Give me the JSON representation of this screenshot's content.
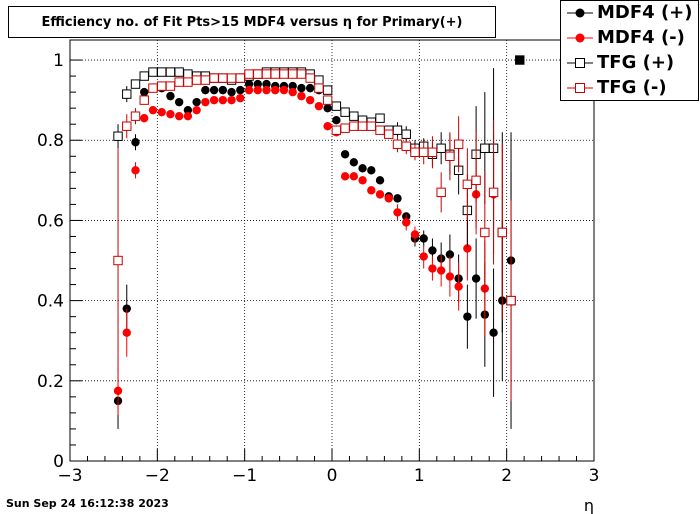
{
  "title": "Efficiency no. of Fit Pts>15 MDF4 versus η for Primary(+)",
  "timestamp": "Sun Sep 24 16:12:38 2023",
  "legend": [
    {
      "label": "MDF4 (+)",
      "color": "#000000",
      "marker": "filled-circle"
    },
    {
      "label": "MDF4 (-)",
      "color": "#ff0000",
      "marker": "filled-circle"
    },
    {
      "label": "TFG (+)",
      "color": "#000000",
      "marker": "open-square"
    },
    {
      "label": "TFG (-)",
      "color": "#cc0000",
      "marker": "open-square"
    }
  ],
  "chart_data": {
    "type": "scatter",
    "title": "Efficiency no. of Fit Pts>15 MDF4 versus η for Primary(+)",
    "xlabel": "η",
    "ylabel": "",
    "xlim": [
      -3,
      3
    ],
    "ylim": [
      0,
      1.05
    ],
    "x_ticks": [
      -3,
      -2,
      -1,
      0,
      1,
      2,
      3
    ],
    "x_tick_labels": [
      "−3",
      "−2",
      "−1",
      "0",
      "1",
      "2",
      "3"
    ],
    "y_ticks": [
      0,
      0.2,
      0.4,
      0.6,
      0.8,
      1
    ],
    "y_tick_labels": [
      "0",
      "0.2",
      "0.4",
      "0.6",
      "0.8",
      "1"
    ],
    "grid": true,
    "legend_position": "top-right",
    "series": [
      {
        "name": "MDF4 (+)",
        "color": "#000000",
        "marker": "filled-circle",
        "x": [
          -2.45,
          -2.35,
          -2.25,
          -2.15,
          -2.05,
          -1.95,
          -1.85,
          -1.75,
          -1.65,
          -1.55,
          -1.45,
          -1.35,
          -1.25,
          -1.15,
          -1.05,
          -0.95,
          -0.85,
          -0.75,
          -0.65,
          -0.55,
          -0.45,
          -0.35,
          -0.25,
          -0.15,
          -0.05,
          0.05,
          0.15,
          0.25,
          0.35,
          0.45,
          0.55,
          0.65,
          0.75,
          0.85,
          0.95,
          1.05,
          1.15,
          1.25,
          1.35,
          1.45,
          1.55,
          1.65,
          1.75,
          1.85,
          1.95,
          2.05
        ],
        "y": [
          0.15,
          0.38,
          0.795,
          0.92,
          0.93,
          0.93,
          0.91,
          0.895,
          0.875,
          0.895,
          0.925,
          0.925,
          0.925,
          0.92,
          0.925,
          0.94,
          0.94,
          0.94,
          0.935,
          0.935,
          0.935,
          0.93,
          0.93,
          0.925,
          0.88,
          0.85,
          0.765,
          0.745,
          0.73,
          0.725,
          0.7,
          0.66,
          0.655,
          0.61,
          0.555,
          0.555,
          0.525,
          0.505,
          0.515,
          0.455,
          0.36,
          0.455,
          0.365,
          0.32,
          0.4,
          0.5
        ],
        "err": [
          0.07,
          0.06,
          0.02,
          0.01,
          0.01,
          0.01,
          0.01,
          0.01,
          0.01,
          0.01,
          0.01,
          0.01,
          0.01,
          0.01,
          0.01,
          0.01,
          0.01,
          0.01,
          0.01,
          0.01,
          0.01,
          0.01,
          0.01,
          0.01,
          0.01,
          0.01,
          0.01,
          0.01,
          0.01,
          0.01,
          0.01,
          0.01,
          0.01,
          0.01,
          0.02,
          0.02,
          0.03,
          0.04,
          0.05,
          0.06,
          0.08,
          0.1,
          0.13,
          0.16,
          0.2,
          0.32
        ]
      },
      {
        "name": "MDF4 (-)",
        "color": "#ff0000",
        "marker": "filled-circle",
        "x": [
          -2.45,
          -2.35,
          -2.25,
          -2.15,
          -2.05,
          -1.95,
          -1.85,
          -1.75,
          -1.65,
          -1.55,
          -1.45,
          -1.35,
          -1.25,
          -1.15,
          -1.05,
          -0.95,
          -0.85,
          -0.75,
          -0.65,
          -0.55,
          -0.45,
          -0.35,
          -0.25,
          -0.15,
          -0.05,
          0.05,
          0.15,
          0.25,
          0.35,
          0.45,
          0.55,
          0.65,
          0.75,
          0.85,
          0.95,
          1.05,
          1.15,
          1.25,
          1.35,
          1.45,
          1.55,
          1.65,
          1.75,
          1.85
        ],
        "y": [
          0.175,
          0.32,
          0.725,
          0.855,
          0.875,
          0.87,
          0.865,
          0.86,
          0.86,
          0.875,
          0.895,
          0.9,
          0.9,
          0.9,
          0.905,
          0.925,
          0.925,
          0.925,
          0.925,
          0.925,
          0.92,
          0.91,
          0.9,
          0.885,
          0.835,
          0.82,
          0.71,
          0.71,
          0.7,
          0.675,
          0.665,
          0.655,
          0.62,
          0.595,
          0.565,
          0.51,
          0.48,
          0.475,
          0.46,
          0.435,
          0.53,
          0.665,
          0.43,
          0.665
        ],
        "err": [
          0.06,
          0.06,
          0.02,
          0.01,
          0.01,
          0.01,
          0.01,
          0.01,
          0.01,
          0.01,
          0.01,
          0.01,
          0.01,
          0.01,
          0.01,
          0.01,
          0.01,
          0.01,
          0.01,
          0.01,
          0.01,
          0.01,
          0.01,
          0.01,
          0.01,
          0.01,
          0.01,
          0.01,
          0.01,
          0.01,
          0.01,
          0.01,
          0.02,
          0.02,
          0.02,
          0.03,
          0.03,
          0.04,
          0.05,
          0.06,
          0.08,
          0.1,
          0.12,
          0.15
        ]
      },
      {
        "name": "TFG (+)",
        "color": "#000000",
        "marker": "open-square",
        "x": [
          -2.45,
          -2.35,
          -2.25,
          -2.15,
          -2.05,
          -1.95,
          -1.85,
          -1.75,
          -1.65,
          -1.55,
          -1.45,
          -1.35,
          -1.25,
          -1.15,
          -1.05,
          -0.95,
          -0.85,
          -0.75,
          -0.65,
          -0.55,
          -0.45,
          -0.35,
          -0.25,
          -0.15,
          -0.05,
          0.05,
          0.15,
          0.25,
          0.35,
          0.45,
          0.55,
          0.65,
          0.75,
          0.85,
          0.95,
          1.05,
          1.15,
          1.25,
          1.35,
          1.45,
          1.55,
          1.65,
          1.75,
          1.85,
          1.95,
          2.05,
          2.15
        ],
        "y": [
          0.81,
          0.915,
          0.94,
          0.96,
          0.97,
          0.97,
          0.97,
          0.97,
          0.965,
          0.96,
          0.96,
          0.955,
          0.955,
          0.95,
          0.955,
          0.96,
          0.965,
          0.97,
          0.97,
          0.97,
          0.97,
          0.97,
          0.965,
          0.95,
          0.925,
          0.885,
          0.87,
          0.86,
          0.85,
          0.845,
          0.855,
          0.825,
          0.825,
          0.815,
          0.78,
          0.785,
          0.765,
          0.78,
          0.765,
          0.725,
          0.625,
          0.765,
          0.78,
          0.78,
          0.57,
          0.4,
          1.0
        ],
        "err": [
          0.03,
          0.02,
          0.01,
          0.01,
          0.01,
          0.01,
          0.01,
          0.01,
          0.01,
          0.01,
          0.01,
          0.01,
          0.01,
          0.01,
          0.01,
          0.01,
          0.01,
          0.01,
          0.01,
          0.01,
          0.01,
          0.01,
          0.01,
          0.01,
          0.01,
          0.01,
          0.01,
          0.01,
          0.01,
          0.01,
          0.01,
          0.01,
          0.02,
          0.02,
          0.02,
          0.02,
          0.03,
          0.04,
          0.05,
          0.06,
          0.09,
          0.12,
          0.14,
          0.2,
          0.25,
          0.32,
          0.0
        ]
      },
      {
        "name": "TFG (-)",
        "color": "#cc0000",
        "marker": "open-square",
        "x": [
          -2.45,
          -2.35,
          -2.25,
          -2.15,
          -2.05,
          -1.95,
          -1.85,
          -1.75,
          -1.65,
          -1.55,
          -1.45,
          -1.35,
          -1.25,
          -1.15,
          -1.05,
          -0.95,
          -0.85,
          -0.75,
          -0.65,
          -0.55,
          -0.45,
          -0.35,
          -0.25,
          -0.15,
          -0.05,
          0.05,
          0.15,
          0.25,
          0.35,
          0.45,
          0.55,
          0.65,
          0.75,
          0.85,
          0.95,
          1.05,
          1.15,
          1.25,
          1.35,
          1.45,
          1.55,
          1.65,
          1.75,
          1.85,
          1.95,
          2.05
        ],
        "y": [
          0.5,
          0.835,
          0.86,
          0.9,
          0.93,
          0.935,
          0.935,
          0.945,
          0.945,
          0.95,
          0.95,
          0.955,
          0.955,
          0.955,
          0.955,
          0.965,
          0.965,
          0.965,
          0.965,
          0.965,
          0.965,
          0.965,
          0.955,
          0.93,
          0.9,
          0.825,
          0.83,
          0.835,
          0.835,
          0.835,
          0.825,
          0.815,
          0.79,
          0.785,
          0.77,
          0.77,
          0.77,
          0.67,
          0.76,
          0.79,
          0.69,
          0.7,
          0.57,
          0.67,
          0.57,
          0.4
        ],
        "err": [
          0.28,
          0.03,
          0.02,
          0.01,
          0.01,
          0.01,
          0.01,
          0.01,
          0.01,
          0.01,
          0.01,
          0.01,
          0.01,
          0.01,
          0.01,
          0.01,
          0.01,
          0.01,
          0.01,
          0.01,
          0.01,
          0.01,
          0.01,
          0.01,
          0.01,
          0.01,
          0.01,
          0.01,
          0.01,
          0.01,
          0.01,
          0.01,
          0.02,
          0.02,
          0.02,
          0.03,
          0.04,
          0.05,
          0.06,
          0.07,
          0.09,
          0.12,
          0.15,
          0.18,
          0.22,
          0.25
        ]
      }
    ]
  }
}
